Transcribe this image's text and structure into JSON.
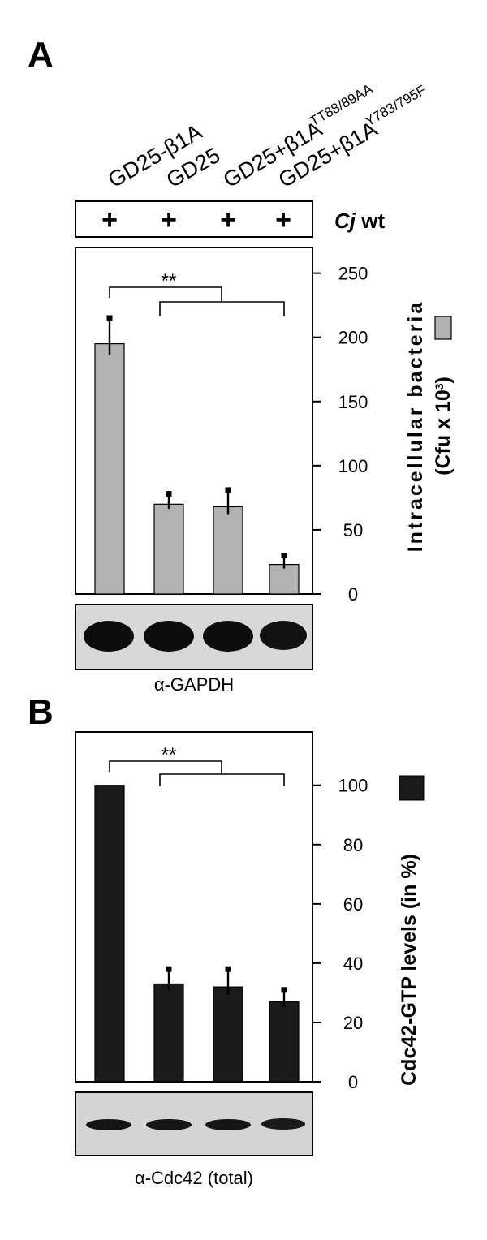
{
  "figure": {
    "panel_a_letter": "A",
    "panel_b_letter": "B",
    "lanes": [
      {
        "label": "GD25-β1A",
        "superscript": ""
      },
      {
        "label": "GD25",
        "superscript": ""
      },
      {
        "label": "GD25+β1A",
        "superscript": "TT88/89AA"
      },
      {
        "label": "GD25+β1A",
        "superscript": "Y783/795F"
      }
    ],
    "treatment": {
      "marks": [
        "+",
        "+",
        "+",
        "+"
      ],
      "label_italic": "Cj",
      "label_rest": " wt"
    },
    "blot_a_label": "α-GAPDH",
    "blot_b_label": "α-Cdc42 (total)",
    "significance": "**"
  },
  "chart_data": [
    {
      "type": "bar",
      "panel": "A",
      "categories": [
        "GD25-β1A",
        "GD25",
        "GD25+β1A TT88/89AA",
        "GD25+β1A Y783/795F"
      ],
      "values": [
        195,
        70,
        68,
        23
      ],
      "errors": [
        20,
        8,
        13,
        7
      ],
      "ylim": [
        0,
        270
      ],
      "yticks": [
        0,
        50,
        100,
        150,
        200,
        250
      ],
      "ylabel_line1": "Intracellular bacteria",
      "ylabel_line2": "(Cfu x 10",
      "ylabel_sup": "3",
      "ylabel_close": ")",
      "bar_color": "#b2b2b2",
      "significance": "**"
    },
    {
      "type": "bar",
      "panel": "B",
      "categories": [
        "GD25-β1A",
        "GD25",
        "GD25+β1A TT88/89AA",
        "GD25+β1A Y783/795F"
      ],
      "values": [
        100,
        33,
        32,
        27
      ],
      "errors": [
        0,
        5,
        6,
        4
      ],
      "ylim": [
        0,
        118
      ],
      "yticks": [
        0,
        20,
        40,
        60,
        80,
        100
      ],
      "ylabel": "Cdc42-GTP levels (in %)",
      "bar_color": "#1a1a1a",
      "significance": "**"
    }
  ]
}
